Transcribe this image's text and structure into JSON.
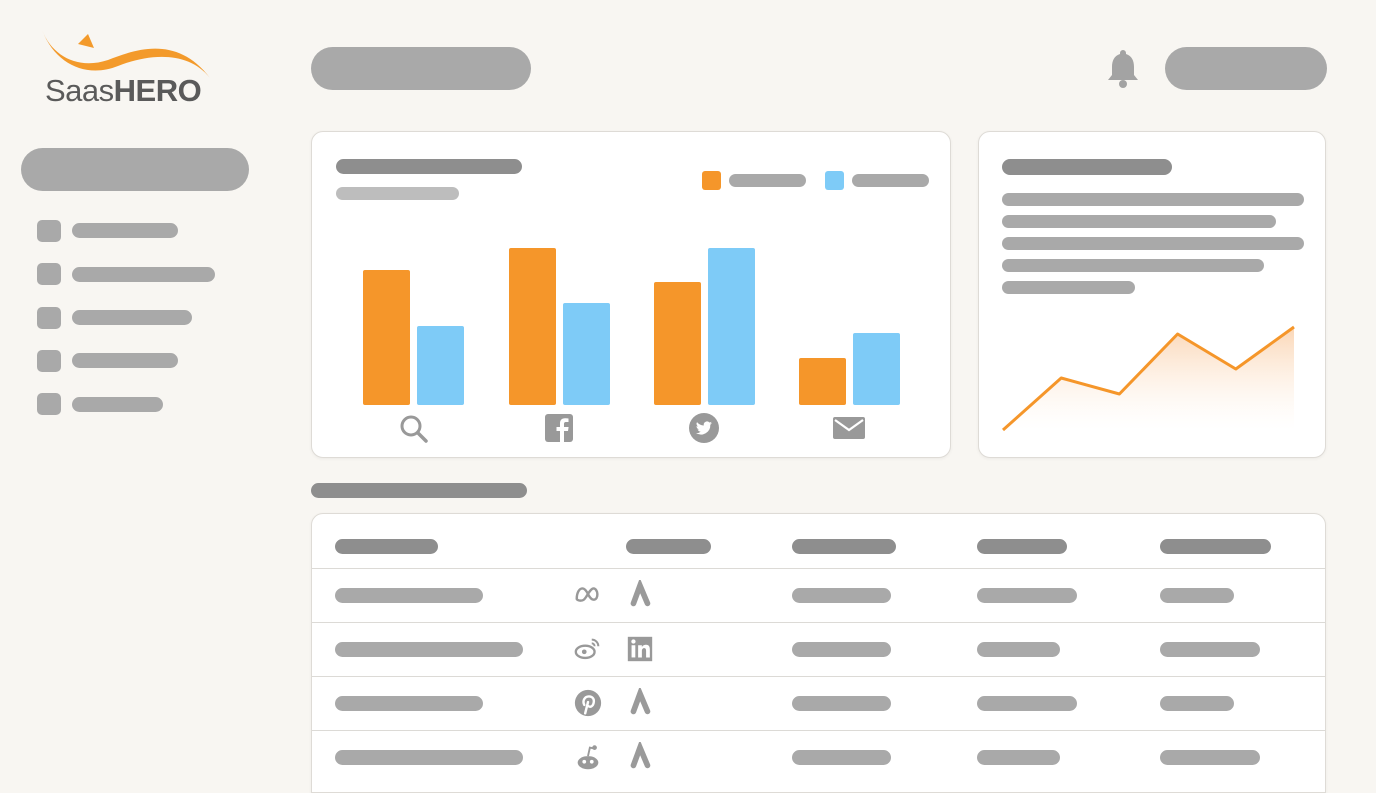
{
  "logo": {
    "name_light": "Saas",
    "name_bold": "HERO",
    "accent": "#f39a2b"
  },
  "colors": {
    "orange": "#f5962a",
    "blue": "#7ecbf7",
    "placeholder": "#a9a9a9"
  },
  "header": {
    "icons": [
      "bell-icon"
    ]
  },
  "sidebar": {
    "item_count": 5
  },
  "bar_chart": {
    "chart_data": {
      "type": "bar",
      "categories": [
        "search",
        "facebook",
        "twitter",
        "email"
      ],
      "category_icons": [
        "search-icon",
        "facebook-icon",
        "twitter-icon",
        "mail-icon"
      ],
      "series": [
        {
          "color": "#f5962a",
          "values": [
            135,
            157,
            123,
            47
          ]
        },
        {
          "color": "#7ecbf7",
          "values": [
            79,
            102,
            157,
            72
          ]
        }
      ]
    }
  },
  "line_chart": {
    "chart_data": {
      "type": "area",
      "values": [
        0,
        52,
        36,
        96,
        61,
        103
      ],
      "color": "#f5962a"
    }
  },
  "table": {
    "rows": [
      {
        "icons": [
          "meta-icon",
          "google-ads-icon"
        ]
      },
      {
        "icons": [
          "weibo-icon",
          "linkedin-icon"
        ]
      },
      {
        "icons": [
          "pinterest-icon",
          "google-ads-icon"
        ]
      },
      {
        "icons": [
          "reddit-icon",
          "google-ads-icon"
        ]
      }
    ]
  }
}
